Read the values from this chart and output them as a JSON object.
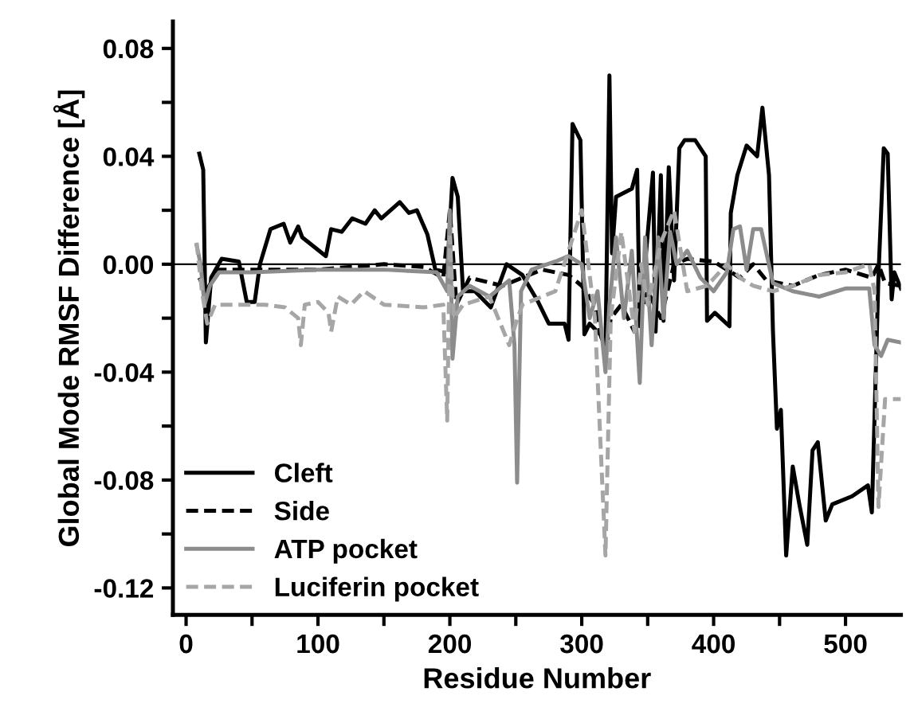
{
  "chart_data": {
    "type": "line",
    "xlabel": "Residue Number",
    "ylabel": "Global Mode RMSF Difference [Å]",
    "xlim": [
      -10,
      542
    ],
    "ylim": [
      -0.13,
      0.09
    ],
    "xticks": [
      0,
      {
        "value": 50,
        "label": null
      },
      100,
      {
        "value": 150,
        "label": null
      },
      200,
      {
        "value": 250,
        "label": null
      },
      300,
      {
        "value": 350,
        "label": null
      },
      400,
      {
        "value": 450,
        "label": null
      },
      500
    ],
    "yticks": [
      -0.12,
      {
        "value": -0.1,
        "label": null
      },
      -0.08,
      {
        "value": -0.06,
        "label": null
      },
      -0.04,
      {
        "value": -0.02,
        "label": null
      },
      {
        "value": 0,
        "label": "0.00"
      },
      {
        "value": 0.02,
        "label": null
      },
      0.04,
      {
        "value": 0.06,
        "label": null
      },
      0.08
    ],
    "grid": false,
    "legend": "bottom left",
    "ref_lines": [
      {
        "axis": "y",
        "value": 0,
        "color": "#000000"
      }
    ],
    "series": [
      {
        "name": "Cleft",
        "color": "#000000",
        "line_style": "solid",
        "x": [
          10,
          13,
          15,
          19,
          27,
          40,
          46,
          52,
          56,
          64,
          74,
          79,
          85,
          88,
          106,
          110,
          118,
          126,
          136,
          143,
          148,
          162,
          169,
          175,
          183,
          189,
          198,
          202,
          206,
          210,
          219,
          231,
          243,
          255,
          267,
          275,
          287,
          290,
          293,
          299,
          302,
          306,
          314,
          318,
          321,
          323,
          326,
          338,
          342,
          344,
          354,
          356,
          360,
          362,
          366,
          370,
          374,
          378,
          386,
          394,
          395,
          401,
          412,
          413,
          418,
          425,
          433,
          437,
          442,
          445,
          448,
          451,
          455,
          460,
          465,
          471,
          475,
          479,
          485,
          490,
          505,
          517,
          520,
          525,
          529,
          532,
          535,
          537,
          542
        ],
        "values": [
          0.041,
          0.035,
          -0.029,
          -0.005,
          0.002,
          0.001,
          -0.014,
          -0.014,
          0.0,
          0.013,
          0.015,
          0.008,
          0.014,
          0.01,
          0.003,
          0.013,
          0.012,
          0.017,
          0.015,
          0.02,
          0.017,
          0.023,
          0.019,
          0.02,
          0.011,
          -0.002,
          -0.003,
          0.032,
          0.025,
          -0.01,
          -0.01,
          -0.016,
          0.0,
          -0.004,
          -0.014,
          -0.022,
          -0.022,
          -0.028,
          0.052,
          0.046,
          -0.026,
          -0.022,
          -0.026,
          -0.031,
          0.07,
          0.004,
          0.025,
          0.028,
          0.035,
          -0.023,
          0.034,
          -0.025,
          0.033,
          -0.021,
          0.036,
          -0.006,
          0.043,
          0.046,
          0.046,
          0.04,
          -0.021,
          -0.018,
          -0.023,
          0.019,
          0.033,
          0.044,
          0.04,
          0.058,
          0.033,
          -0.025,
          -0.061,
          -0.054,
          -0.108,
          -0.075,
          -0.089,
          -0.104,
          -0.069,
          -0.066,
          -0.095,
          -0.089,
          -0.086,
          -0.082,
          -0.092,
          -0.004,
          0.043,
          0.041,
          -0.013,
          -0.003,
          -0.009
        ]
      },
      {
        "name": "Side",
        "color": "#000000",
        "line_style": "dashed",
        "x": [
          10,
          15,
          25,
          60,
          100,
          150,
          180,
          195,
          200,
          205,
          215,
          240,
          270,
          290,
          300,
          310,
          318,
          322,
          330,
          340,
          350,
          360,
          370,
          380,
          400,
          420,
          430,
          440,
          460,
          480,
          500,
          520,
          525,
          530,
          542
        ],
        "values": [
          -0.005,
          -0.01,
          -0.002,
          -0.002,
          -0.002,
          0.0,
          -0.001,
          -0.005,
          0.02,
          -0.015,
          -0.005,
          -0.008,
          -0.002,
          -0.004,
          -0.008,
          -0.015,
          -0.034,
          -0.02,
          -0.015,
          -0.025,
          -0.01,
          -0.02,
          0.0,
          0.002,
          0.001,
          -0.005,
          0.0,
          -0.006,
          -0.008,
          -0.004,
          -0.002,
          -0.005,
          0.0,
          -0.007,
          -0.008
        ]
      },
      {
        "name": "ATP pocket",
        "color": "#8c8c8c",
        "line_style": "solid",
        "x": [
          8,
          11,
          14,
          18,
          25,
          50,
          100,
          150,
          190,
          198,
          200,
          202,
          206,
          215,
          230,
          245,
          249,
          251,
          254,
          262,
          280,
          290,
          300,
          306,
          312,
          318,
          321,
          326,
          332,
          338,
          344,
          348,
          353,
          358,
          362,
          367,
          372,
          380,
          390,
          400,
          410,
          415,
          420,
          425,
          430,
          436,
          445,
          460,
          480,
          500,
          518,
          522,
          527,
          532,
          542
        ],
        "values": [
          0.007,
          0.0,
          -0.015,
          -0.008,
          -0.003,
          -0.003,
          -0.002,
          -0.002,
          -0.003,
          -0.01,
          0.02,
          -0.035,
          -0.012,
          -0.008,
          -0.012,
          -0.006,
          -0.03,
          -0.081,
          -0.01,
          -0.002,
          0.001,
          0.003,
          0.0,
          -0.02,
          -0.01,
          -0.04,
          -0.015,
          0.01,
          -0.02,
          0.005,
          -0.044,
          0.01,
          -0.03,
          0.01,
          -0.02,
          0.012,
          0.0,
          0.005,
          -0.005,
          -0.01,
          -0.003,
          0.013,
          0.014,
          -0.002,
          0.013,
          0.013,
          -0.007,
          -0.01,
          -0.012,
          -0.009,
          -0.009,
          -0.03,
          -0.034,
          -0.028,
          -0.029
        ]
      },
      {
        "name": "Luciferin pocket",
        "color": "#a6a6a6",
        "line_style": "dashed",
        "x": [
          8,
          12,
          16,
          22,
          40,
          60,
          75,
          85,
          87,
          90,
          100,
          108,
          110,
          115,
          125,
          135,
          150,
          180,
          195,
          198,
          200,
          203,
          210,
          230,
          245,
          250,
          255,
          265,
          280,
          300,
          310,
          318,
          322,
          330,
          340,
          345,
          350,
          360,
          370,
          380,
          395,
          410,
          420,
          430,
          445,
          460,
          480,
          500,
          518,
          522,
          525,
          530,
          535,
          542
        ],
        "values": [
          0.008,
          -0.01,
          -0.022,
          -0.015,
          -0.015,
          -0.015,
          -0.016,
          -0.02,
          -0.03,
          -0.015,
          -0.014,
          -0.018,
          -0.025,
          -0.012,
          -0.015,
          -0.01,
          -0.015,
          -0.016,
          -0.015,
          -0.058,
          0.01,
          -0.02,
          -0.015,
          -0.012,
          -0.03,
          -0.022,
          -0.015,
          -0.013,
          -0.01,
          0.02,
          -0.02,
          -0.108,
          -0.02,
          0.012,
          -0.025,
          0.0,
          -0.015,
          0.008,
          0.02,
          -0.01,
          -0.008,
          0.0,
          -0.005,
          -0.008,
          -0.01,
          -0.008,
          -0.004,
          -0.003,
          0.0,
          -0.01,
          -0.09,
          -0.05,
          -0.05,
          -0.05
        ]
      }
    ]
  }
}
